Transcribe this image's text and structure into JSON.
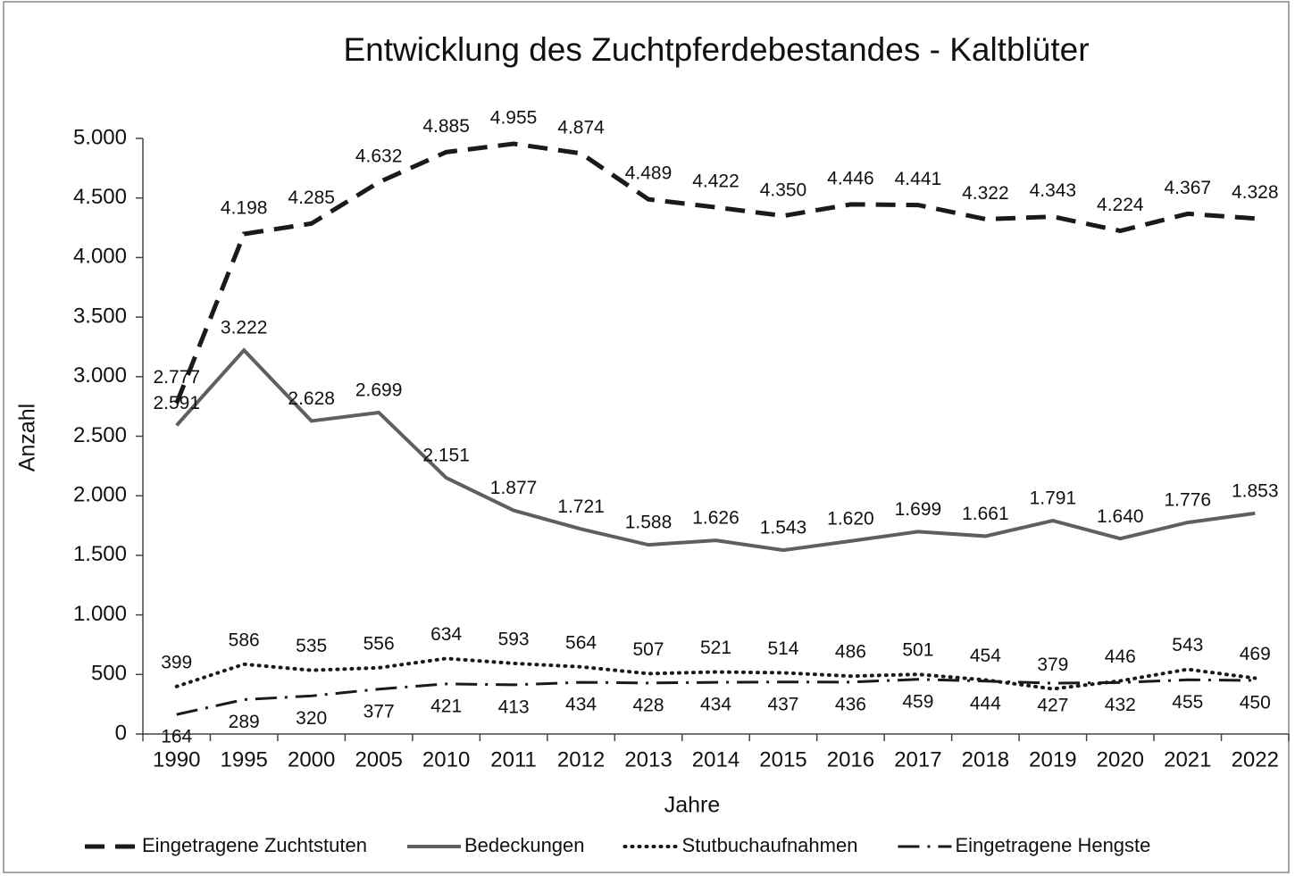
{
  "chart_data": {
    "type": "line",
    "title": "Entwicklung des Zuchtpferdebestandes - Kaltblüter",
    "x_label": "Jahre",
    "y_label": "Anzahl",
    "categories": [
      "1990",
      "1995",
      "2000",
      "2005",
      "2010",
      "2011",
      "2012",
      "2013",
      "2014",
      "2015",
      "2016",
      "2017",
      "2018",
      "2019",
      "2020",
      "2021",
      "2022"
    ],
    "series": [
      {
        "name": "Eingetragene Zuchtstuten",
        "color": "#1a1a1a",
        "dash": "dashed",
        "values": [
          2777,
          4198,
          4285,
          4632,
          4885,
          4955,
          4874,
          4489,
          4422,
          4350,
          4446,
          4441,
          4322,
          4343,
          4224,
          4367,
          4328
        ],
        "value_labels": [
          "2.777",
          "4.198",
          "4.285",
          "4.632",
          "4.885",
          "4.955",
          "4.874",
          "4.489",
          "4.422",
          "4.350",
          "4.446",
          "4.441",
          "4.322",
          "4.343",
          "4.224",
          "4.367",
          "4.328"
        ]
      },
      {
        "name": "Bedeckungen",
        "color": "#5f5f5f",
        "dash": "solid",
        "values": [
          2591,
          3222,
          2628,
          2699,
          2151,
          1877,
          1721,
          1588,
          1626,
          1543,
          1620,
          1699,
          1661,
          1791,
          1640,
          1776,
          1853
        ],
        "value_labels": [
          "2.591",
          "3.222",
          "2.628",
          "2.699",
          "2.151",
          "1.877",
          "1.721",
          "1.588",
          "1.626",
          "1.543",
          "1.620",
          "1.699",
          "1.661",
          "1.791",
          "1.640",
          "1.776",
          "1.853"
        ]
      },
      {
        "name": "Stutbuchaufnahmen",
        "color": "#1a1a1a",
        "dash": "dotted",
        "values": [
          399,
          586,
          535,
          556,
          634,
          593,
          564,
          507,
          521,
          514,
          486,
          501,
          454,
          379,
          446,
          543,
          469
        ]
      },
      {
        "name": "Eingetragene Hengste",
        "color": "#1a1a1a",
        "dash": "dashdot",
        "values": [
          164,
          289,
          320,
          377,
          421,
          413,
          434,
          428,
          434,
          437,
          436,
          459,
          444,
          427,
          432,
          455,
          450
        ]
      }
    ],
    "ylim": [
      0,
      5000
    ],
    "yticks": [
      0,
      500,
      {
        "value": 1000,
        "label": "1.000"
      },
      {
        "value": 1500,
        "label": "1.500"
      },
      {
        "value": 2000,
        "label": "2.000"
      },
      {
        "value": 2500,
        "label": "2.500"
      },
      {
        "value": 3000,
        "label": "3.000"
      },
      {
        "value": 3500,
        "label": "3.500"
      },
      {
        "value": 4000,
        "label": "4.000"
      },
      {
        "value": 4500,
        "label": "4.500"
      },
      {
        "value": 5000,
        "label": "5.000"
      }
    ],
    "grid": false,
    "legend": "bottom"
  }
}
